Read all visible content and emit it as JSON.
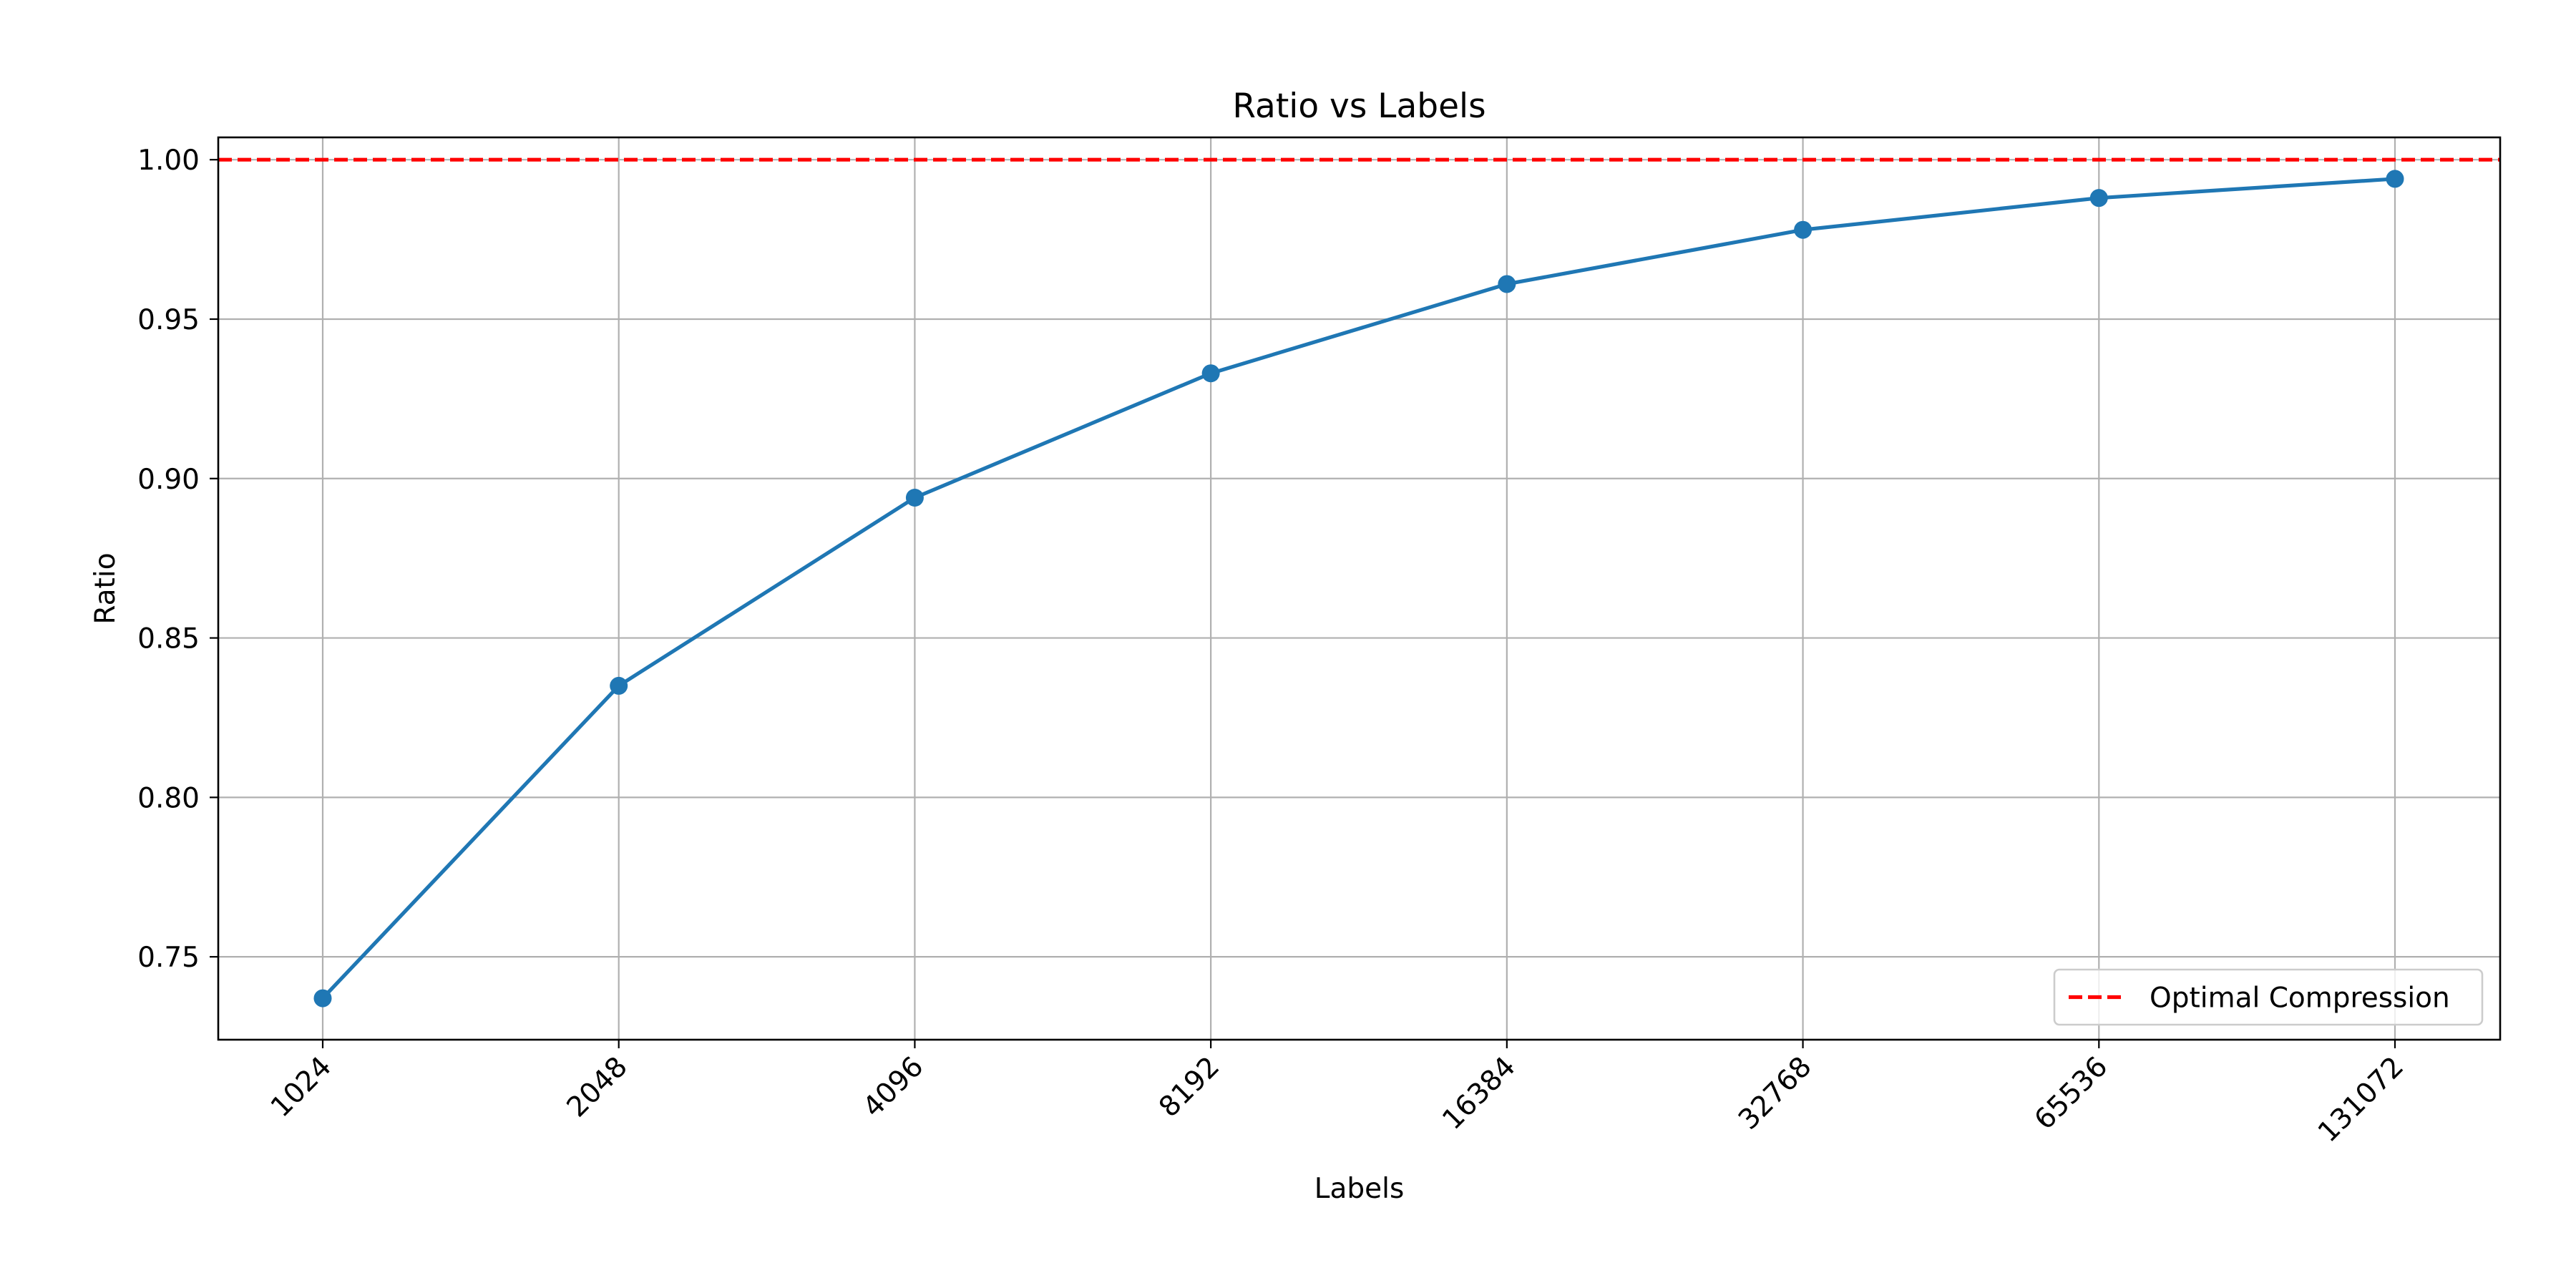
{
  "chart_data": {
    "type": "line",
    "title": "Ratio vs Labels",
    "xlabel": "Labels",
    "ylabel": "Ratio",
    "categories": [
      "1024",
      "2048",
      "4096",
      "8192",
      "16384",
      "32768",
      "65536",
      "131072"
    ],
    "series": [
      {
        "values": [
          0.737,
          0.835,
          0.894,
          0.933,
          0.961,
          0.978,
          0.988,
          0.994
        ],
        "color": "#1f77b4",
        "marker": "circle"
      }
    ],
    "reference_line": {
      "name": "Optimal Compression",
      "y": 1.0,
      "color": "#ff0000",
      "style": "dashed"
    },
    "ylim": [
      0.724,
      1.007
    ],
    "yticks": [
      0.75,
      0.8,
      0.85,
      0.9,
      0.95,
      1.0
    ],
    "ytick_labels": [
      "0.75",
      "0.80",
      "0.85",
      "0.90",
      "0.95",
      "1.00"
    ],
    "grid": true,
    "legend": {
      "placement": "lower-right",
      "entries": [
        "Optimal Compression"
      ]
    },
    "x_tick_rotation_deg": 45
  }
}
